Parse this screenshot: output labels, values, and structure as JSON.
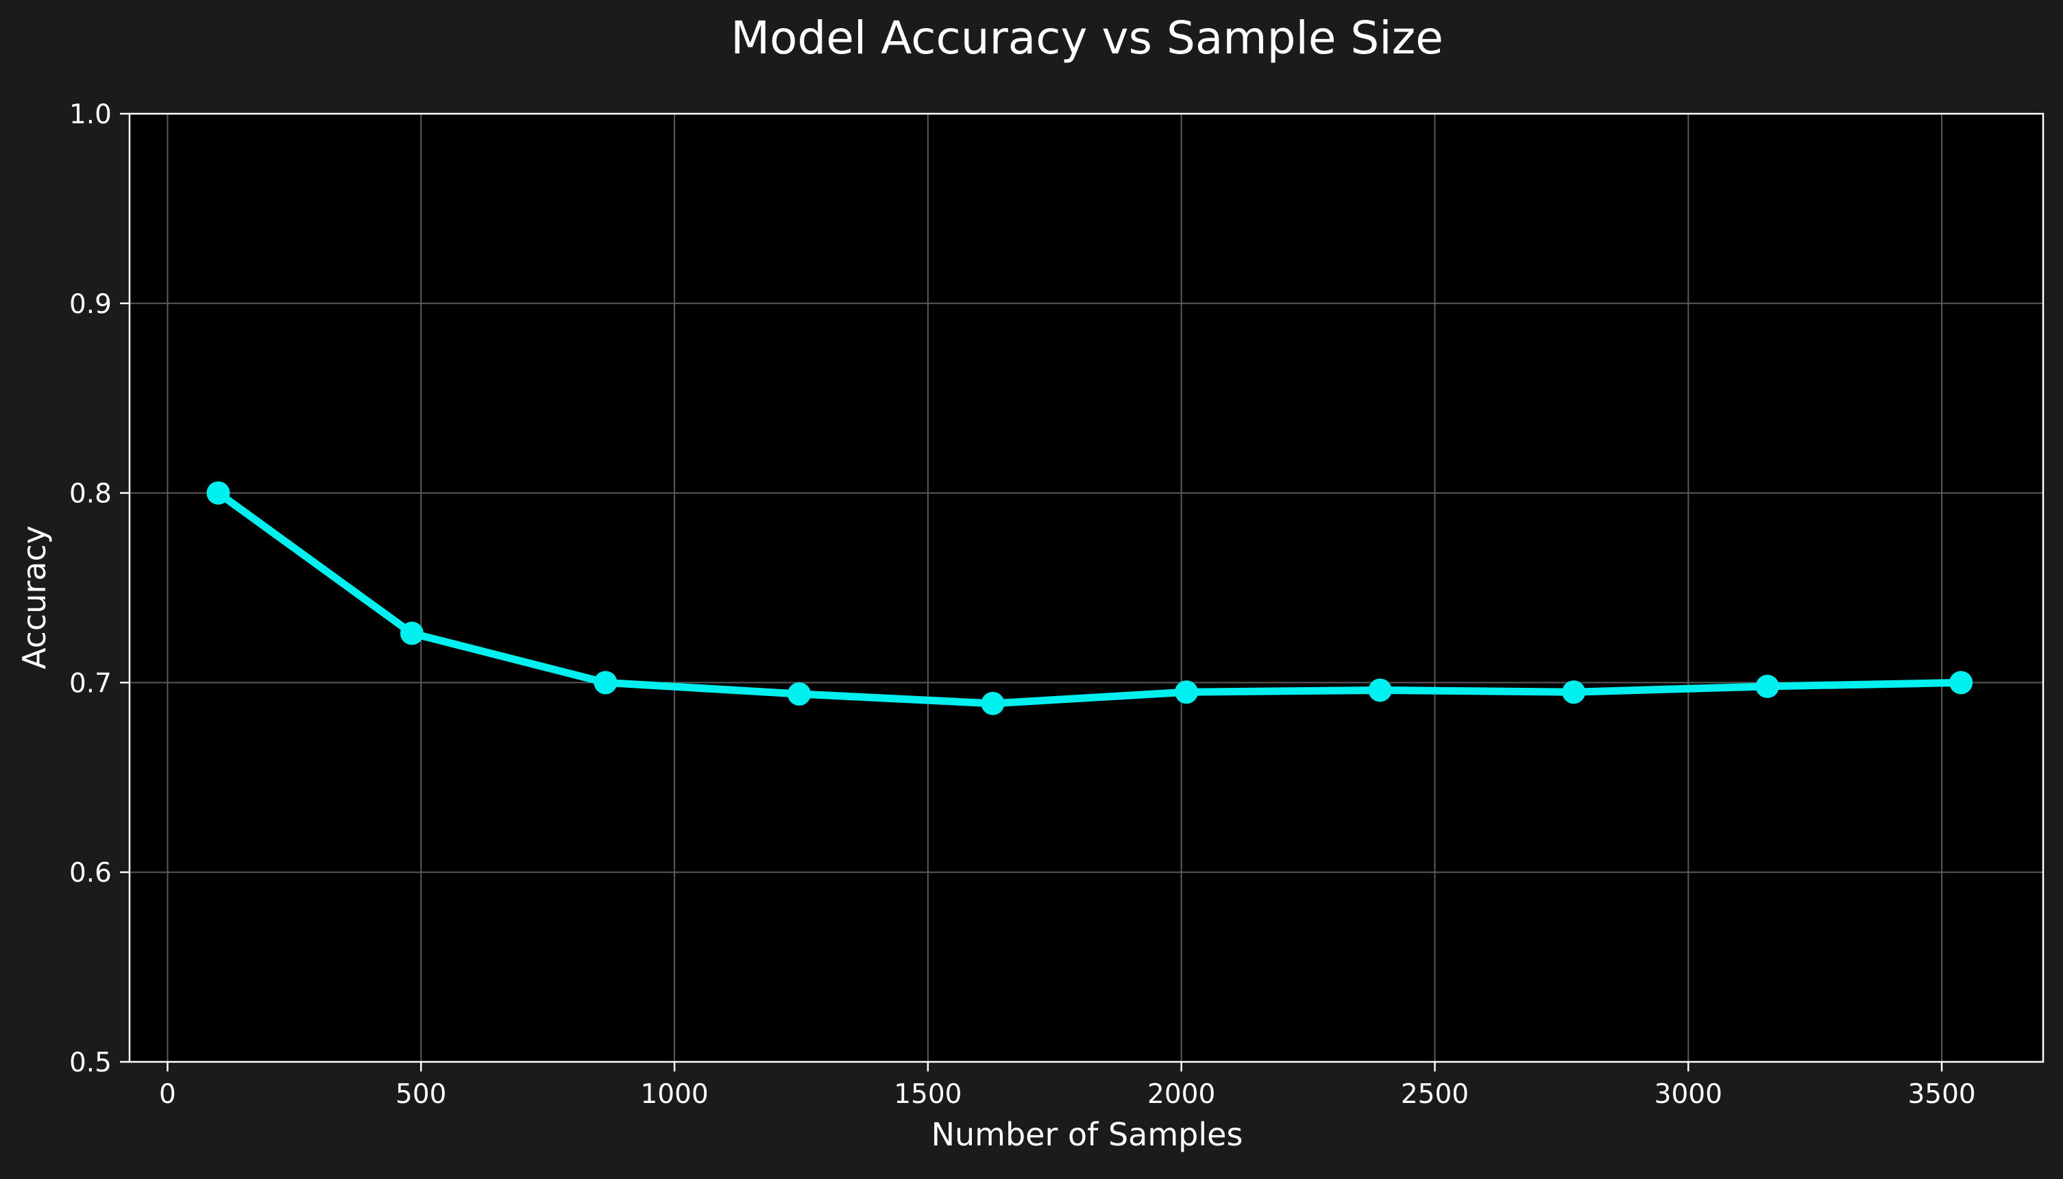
{
  "chart_data": {
    "type": "line",
    "title": "Model Accuracy vs Sample Size",
    "xlabel": "Number of Samples",
    "ylabel": "Accuracy",
    "xlim": [
      -75,
      3700
    ],
    "ylim": [
      0.5,
      1.0
    ],
    "xticks": [
      0,
      500,
      1000,
      1500,
      2000,
      2500,
      3000,
      3500
    ],
    "yticks": [
      0.5,
      0.6,
      0.7,
      0.8,
      0.9,
      1.0
    ],
    "xtick_labels": [
      "0",
      "500",
      "1000",
      "1500",
      "2000",
      "2500",
      "3000",
      "3500"
    ],
    "ytick_labels": [
      "0.5",
      "0.6",
      "0.7",
      "0.8",
      "0.9",
      "1.0"
    ],
    "grid": true,
    "series": [
      {
        "x": [
          100,
          482,
          864,
          1246,
          1628,
          2010,
          2392,
          2774,
          3156,
          3538
        ],
        "y": [
          0.8,
          0.726,
          0.7,
          0.694,
          0.689,
          0.695,
          0.696,
          0.695,
          0.698,
          0.7
        ]
      }
    ]
  },
  "colors": {
    "background": "#1b1b1b",
    "plot_background": "#000000",
    "line": "#00f0f0",
    "text": "#ffffff",
    "grid": "#5a5a5a",
    "axis": "#ffffff"
  }
}
